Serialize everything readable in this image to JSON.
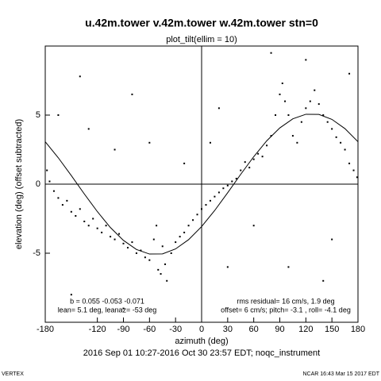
{
  "chart_data": {
    "type": "scatter",
    "title": "u.42m.tower v.42m.tower w.42m.tower stn=0",
    "subtitle": "plot_tilt(ellim = 10)",
    "x_label": "azimuth (deg)",
    "y_label": "elevation (deg)  (offset subtracted)",
    "footer": "2016 Sep 01 10:27-2016 Oct 30 23:57 EDT; noqc_instrument",
    "corner_left": "VERTEX",
    "corner_right": "NCAR 16:43 Mar 15 2017 EDT",
    "annotations": [
      "b =  0.055 -0.053 -0.071",
      "lean= 5.1 deg, leanaz= -53 deg",
      "rms residual= 16 cm/s, 1.9 deg",
      "offset= 6 cm/s; pitch= -3.1 , roll= -4.1 deg"
    ],
    "color": "#000000",
    "xlim": [
      -180,
      180
    ],
    "ylim": [
      -10,
      10
    ],
    "xticks": [
      -180,
      -120,
      -90,
      -60,
      -30,
      0,
      30,
      60,
      90,
      120,
      150,
      180
    ],
    "yticks": [
      -5,
      0,
      5
    ],
    "x": [
      -178,
      -175,
      -170,
      -165,
      -160,
      -155,
      -150,
      -145,
      -140,
      -135,
      -130,
      -125,
      -120,
      -115,
      -110,
      -105,
      -100,
      -95,
      -90,
      -85,
      -80,
      -75,
      -70,
      -65,
      -60,
      -55,
      -52,
      -50,
      -47,
      -45,
      -42,
      -40,
      -35,
      -30,
      -25,
      -20,
      -15,
      -10,
      -5,
      0,
      5,
      10,
      15,
      20,
      25,
      30,
      35,
      40,
      45,
      50,
      55,
      60,
      65,
      70,
      75,
      80,
      85,
      90,
      93,
      96,
      100,
      105,
      110,
      115,
      120,
      125,
      130,
      135,
      140,
      145,
      150,
      155,
      160,
      165,
      170,
      175,
      179,
      -165,
      -140,
      -100,
      -80,
      -60,
      -20,
      20,
      30,
      60,
      100,
      120,
      150,
      -150,
      -90,
      170,
      -130,
      10,
      80,
      140
    ],
    "values": [
      1,
      0.2,
      -0.5,
      -1,
      -1.5,
      -1.2,
      -2,
      -2.3,
      -1.8,
      -2.7,
      -3,
      -2.5,
      -3.2,
      -3.5,
      -3,
      -3.8,
      -4,
      -3.6,
      -4.3,
      -4.6,
      -4.2,
      -5,
      -4.8,
      -5.3,
      -5.5,
      -4,
      -3,
      -6.2,
      -6.5,
      -4.5,
      -5.8,
      -7,
      -5,
      -4.2,
      -3.8,
      -3.5,
      -3,
      -2.6,
      -2.2,
      -1.8,
      -1.5,
      -1.2,
      -0.9,
      -0.6,
      -0.3,
      -0.1,
      0.2,
      0.4,
      1,
      1.6,
      1.2,
      1.8,
      2.2,
      2,
      2.8,
      3.5,
      5,
      6.5,
      7.3,
      6,
      5,
      3.5,
      3,
      4.5,
      5.5,
      6,
      6.8,
      5.8,
      5,
      4.5,
      4,
      3.4,
      3,
      2.5,
      1.5,
      1,
      0.5,
      5,
      7.8,
      2.5,
      6.5,
      3,
      1.5,
      5.5,
      -6,
      -3,
      -6,
      9,
      -4,
      -8,
      -9,
      8,
      4,
      3,
      9.5,
      -7
    ],
    "fit_x": [
      -180,
      -165,
      -150,
      -135,
      -120,
      -105,
      -90,
      -75,
      -60,
      -45,
      -30,
      -15,
      0,
      15,
      30,
      45,
      60,
      75,
      90,
      105,
      120,
      135,
      150,
      165,
      180
    ],
    "fit_values": [
      3.07,
      1.91,
      0.62,
      -0.71,
      -1.99,
      -3.14,
      -4.07,
      -4.73,
      -5.06,
      -5.05,
      -4.69,
      -4.02,
      -3.07,
      -1.91,
      -0.62,
      0.71,
      1.99,
      3.14,
      4.07,
      4.73,
      5.06,
      5.05,
      4.69,
      4.02,
      3.07
    ]
  }
}
